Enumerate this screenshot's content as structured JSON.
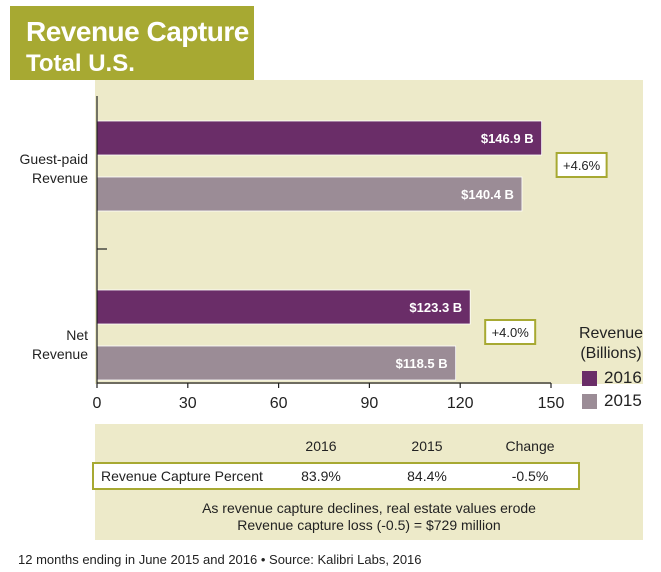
{
  "title": {
    "line1": "Revenue Capture",
    "line2": "Total U.S."
  },
  "colors": {
    "title_bg": "#a7a932",
    "panel_bg": "#edeac9",
    "series_2016": "#6a2d68",
    "series_2015": "#9b8c96",
    "change_border": "#a7a932"
  },
  "chart_data": {
    "type": "bar",
    "orientation": "horizontal",
    "categories": [
      "Guest-paid Revenue",
      "Net Revenue"
    ],
    "category_lines": [
      [
        "Guest-paid",
        "Revenue"
      ],
      [
        "Net",
        "Revenue"
      ]
    ],
    "series": [
      {
        "name": "2016",
        "values": [
          146.9,
          123.3
        ],
        "labels": [
          "$146.9 B",
          "$123.3 B"
        ]
      },
      {
        "name": "2015",
        "values": [
          140.4,
          118.5
        ],
        "labels": [
          "$140.4 B",
          "$118.5 B"
        ]
      }
    ],
    "changes": [
      "+4.6%",
      "+4.0%"
    ],
    "xlim": [
      0,
      150
    ],
    "xticks": [
      0,
      30,
      60,
      90,
      120,
      150
    ],
    "legend": {
      "title_lines": [
        "Revenue",
        "(Billions)"
      ],
      "placement": "right"
    },
    "grid": false
  },
  "table": {
    "headers": [
      "2016",
      "2015",
      "Change"
    ],
    "row": {
      "label": "Revenue Capture Percent",
      "values": [
        "83.9%",
        "84.4%",
        "-0.5%"
      ]
    }
  },
  "notes": [
    "As revenue capture declines, real estate values erode",
    "Revenue capture loss (-0.5) = $729 million"
  ],
  "footer": "12 months ending in June 2015 and 2016 • Source: Kalibri Labs, 2016"
}
